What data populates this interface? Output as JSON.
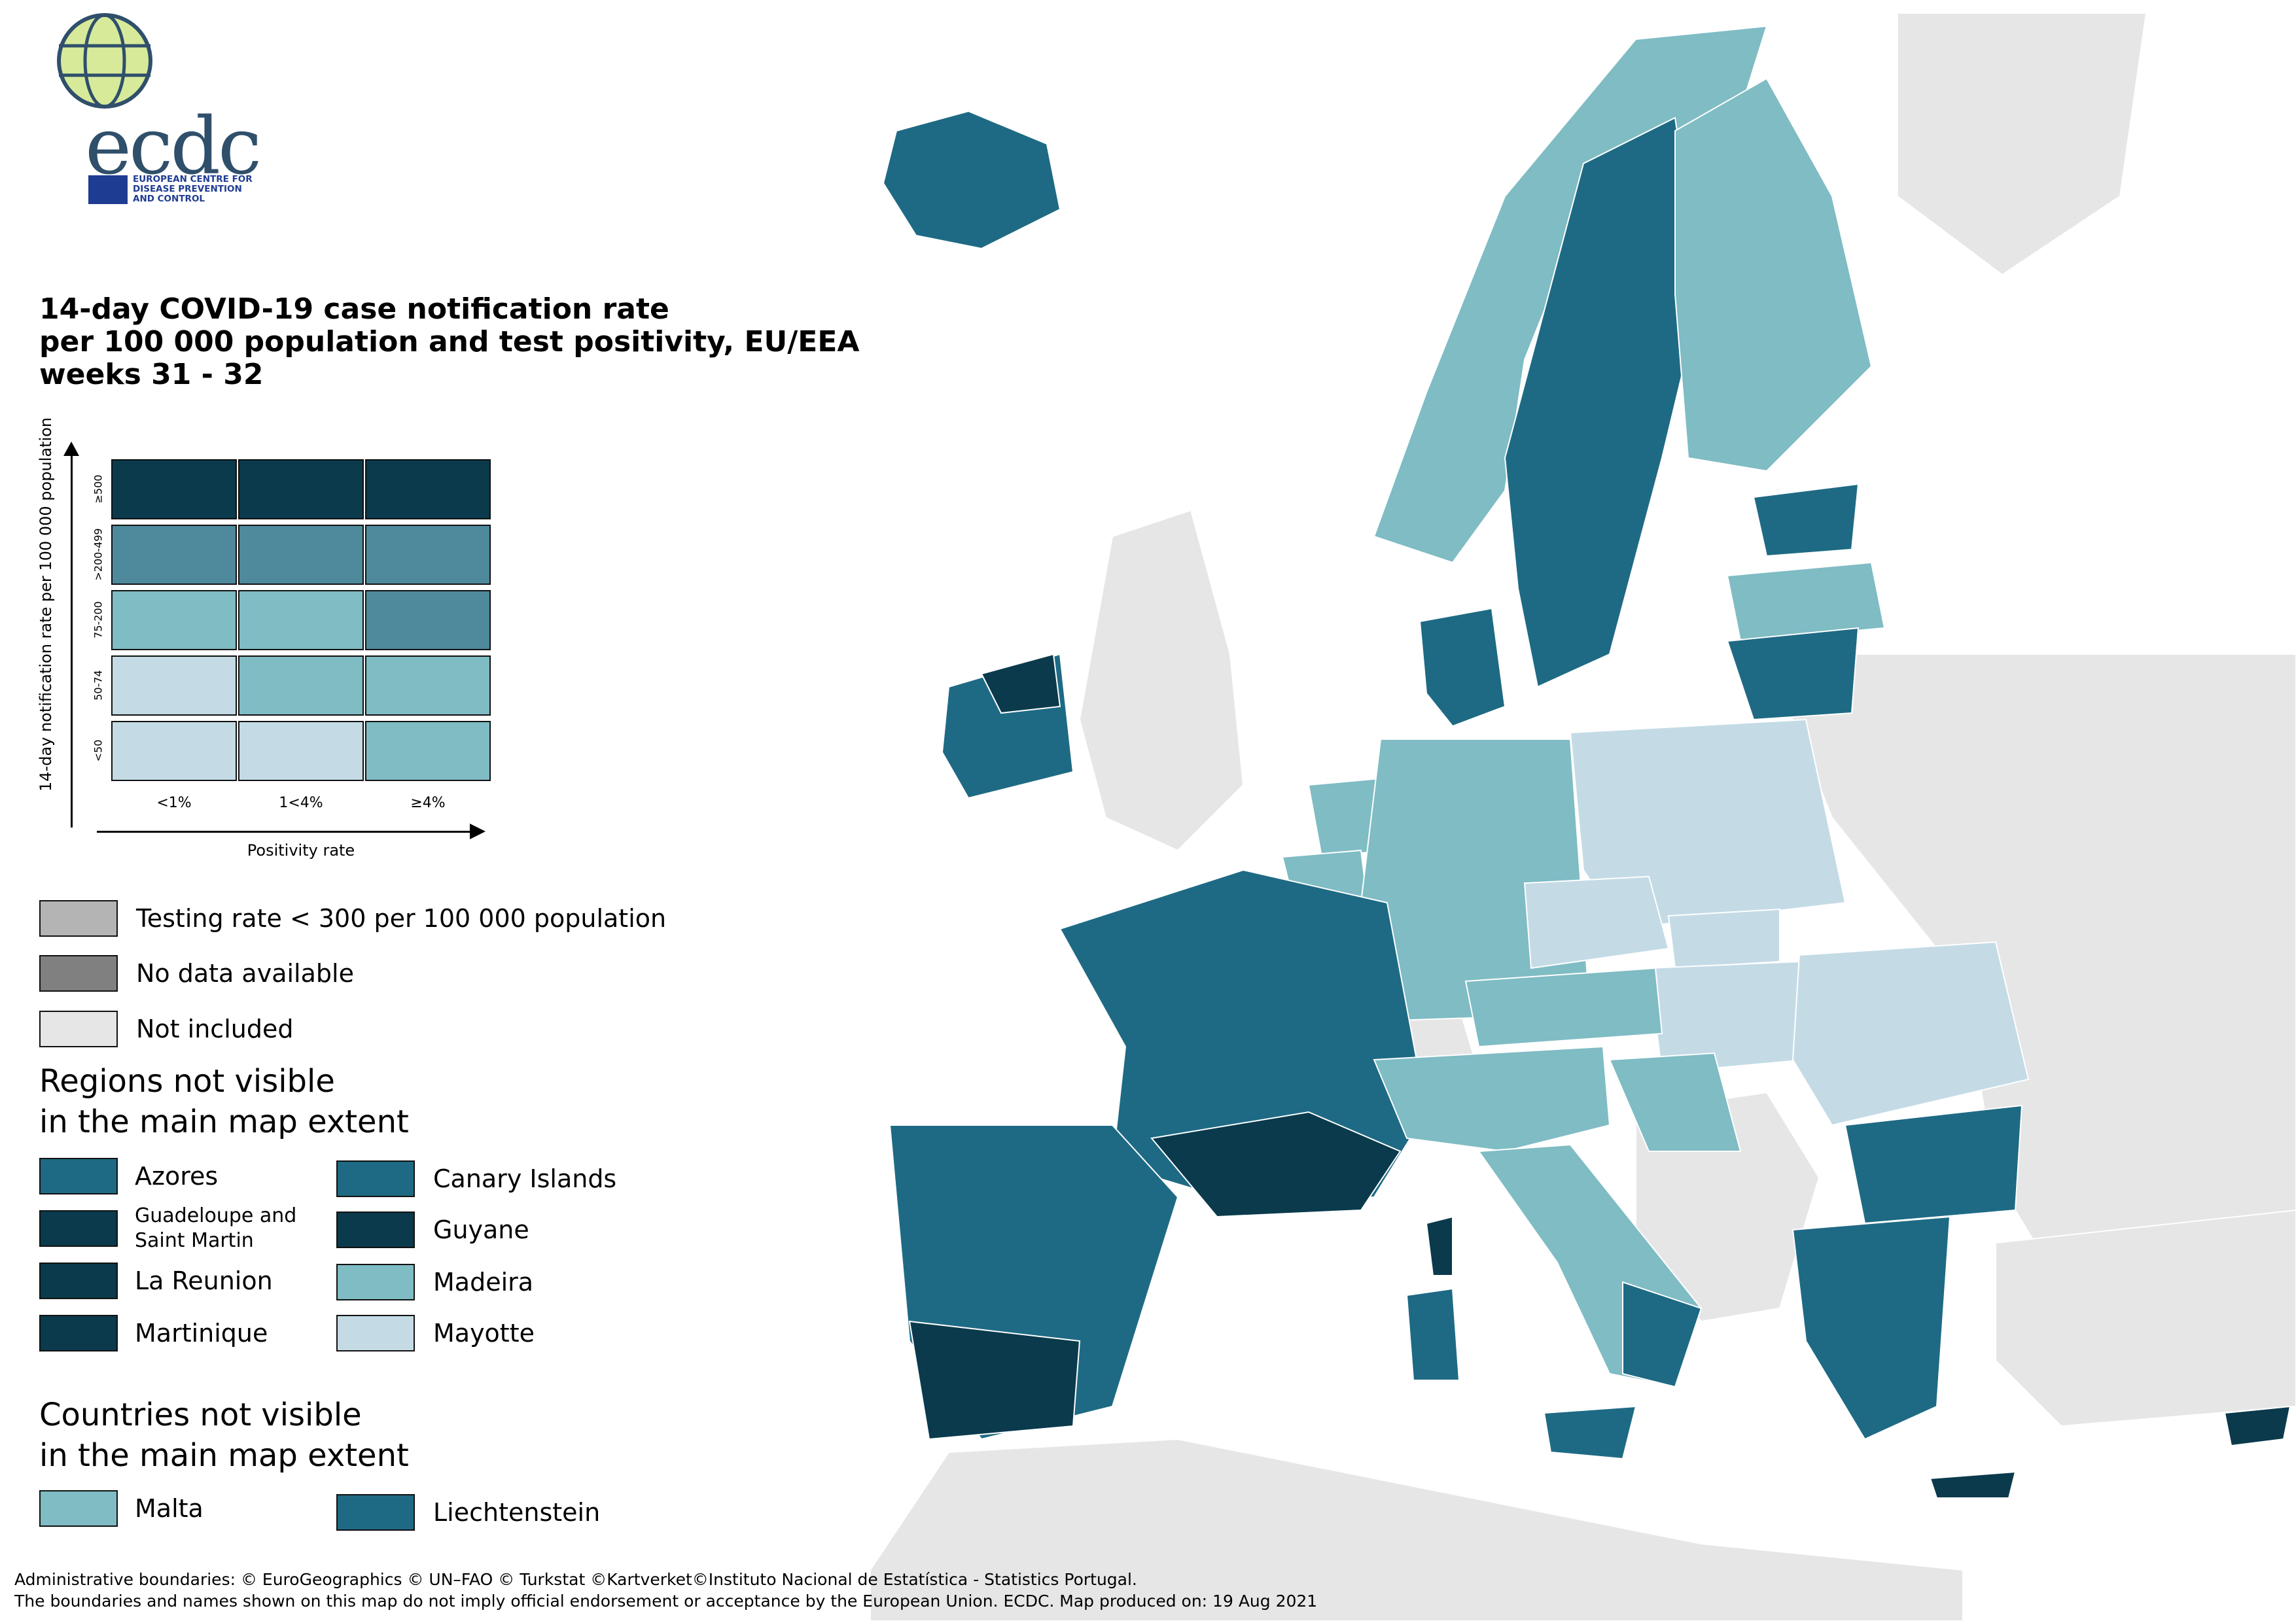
{
  "logo": {
    "wordmark": "ecdc",
    "subtitle": [
      "EUROPEAN CENTRE FOR",
      "DISEASE PREVENTION",
      "AND CONTROL"
    ]
  },
  "title": {
    "line1": "14-day COVID-19 case notification rate",
    "line2": "per 100 000 population and test positivity, EU/EEA",
    "line3": "weeks 31 - 32"
  },
  "matrix": {
    "y_axis_label": "14-day notification rate per 100 000 population",
    "x_axis_label": "Positivity rate",
    "rows": [
      "≥500",
      ">200-499",
      "75-200",
      "50-74",
      "<50"
    ],
    "columns": [
      "<1%",
      "1<4%",
      "≥4%"
    ],
    "colors": [
      [
        "#0a3a4c",
        "#0a3a4c",
        "#0a3a4c"
      ],
      [
        "#4e8a9c",
        "#4e8a9c",
        "#4e8a9c"
      ],
      [
        "#7fbcc4",
        "#7fbcc4",
        "#4e8a9c"
      ],
      [
        "#c4dbe6",
        "#7fbcc4",
        "#7fbcc4"
      ],
      [
        "#c4dbe6",
        "#c4dbe6",
        "#7fbcc4"
      ]
    ]
  },
  "legend": {
    "testing": {
      "label": "Testing rate < 300 per 100 000 population",
      "color": "#b4b4b4"
    },
    "nodata": {
      "label": "No data available",
      "color": "#808080"
    },
    "notincluded": {
      "label": "Not included",
      "color": "#e6e6e6"
    }
  },
  "regions_heading": [
    "Regions not visible",
    "in the main map extent"
  ],
  "regions": [
    {
      "label": "Azores",
      "color": "#1e6a84"
    },
    {
      "label": "Canary Islands",
      "color": "#1e6a84"
    },
    {
      "label": "Guadeloupe and Saint Martin",
      "color": "#0a3a4c"
    },
    {
      "label": "Guyane",
      "color": "#0a3a4c"
    },
    {
      "label": "La Reunion",
      "color": "#0a3a4c"
    },
    {
      "label": "Madeira",
      "color": "#7fbcc4"
    },
    {
      "label": "Martinique",
      "color": "#0a3a4c"
    },
    {
      "label": "Mayotte",
      "color": "#c4dbe6"
    }
  ],
  "countries_heading": [
    "Countries not visible",
    "in the main map extent"
  ],
  "countries": [
    {
      "label": "Malta",
      "color": "#7fbcc4"
    },
    {
      "label": "Liechtenstein",
      "color": "#1e6a84"
    }
  ],
  "footer": {
    "line1": "Administrative boundaries: © EuroGeographics © UN–FAO © Turkstat ©Kartverket©Instituto Nacional de Estatística - Statistics Portugal.",
    "line2": "The boundaries and names shown on this map do not imply official endorsement or acceptance by the European Union. ECDC. Map produced on: 19 Aug 2021"
  }
}
